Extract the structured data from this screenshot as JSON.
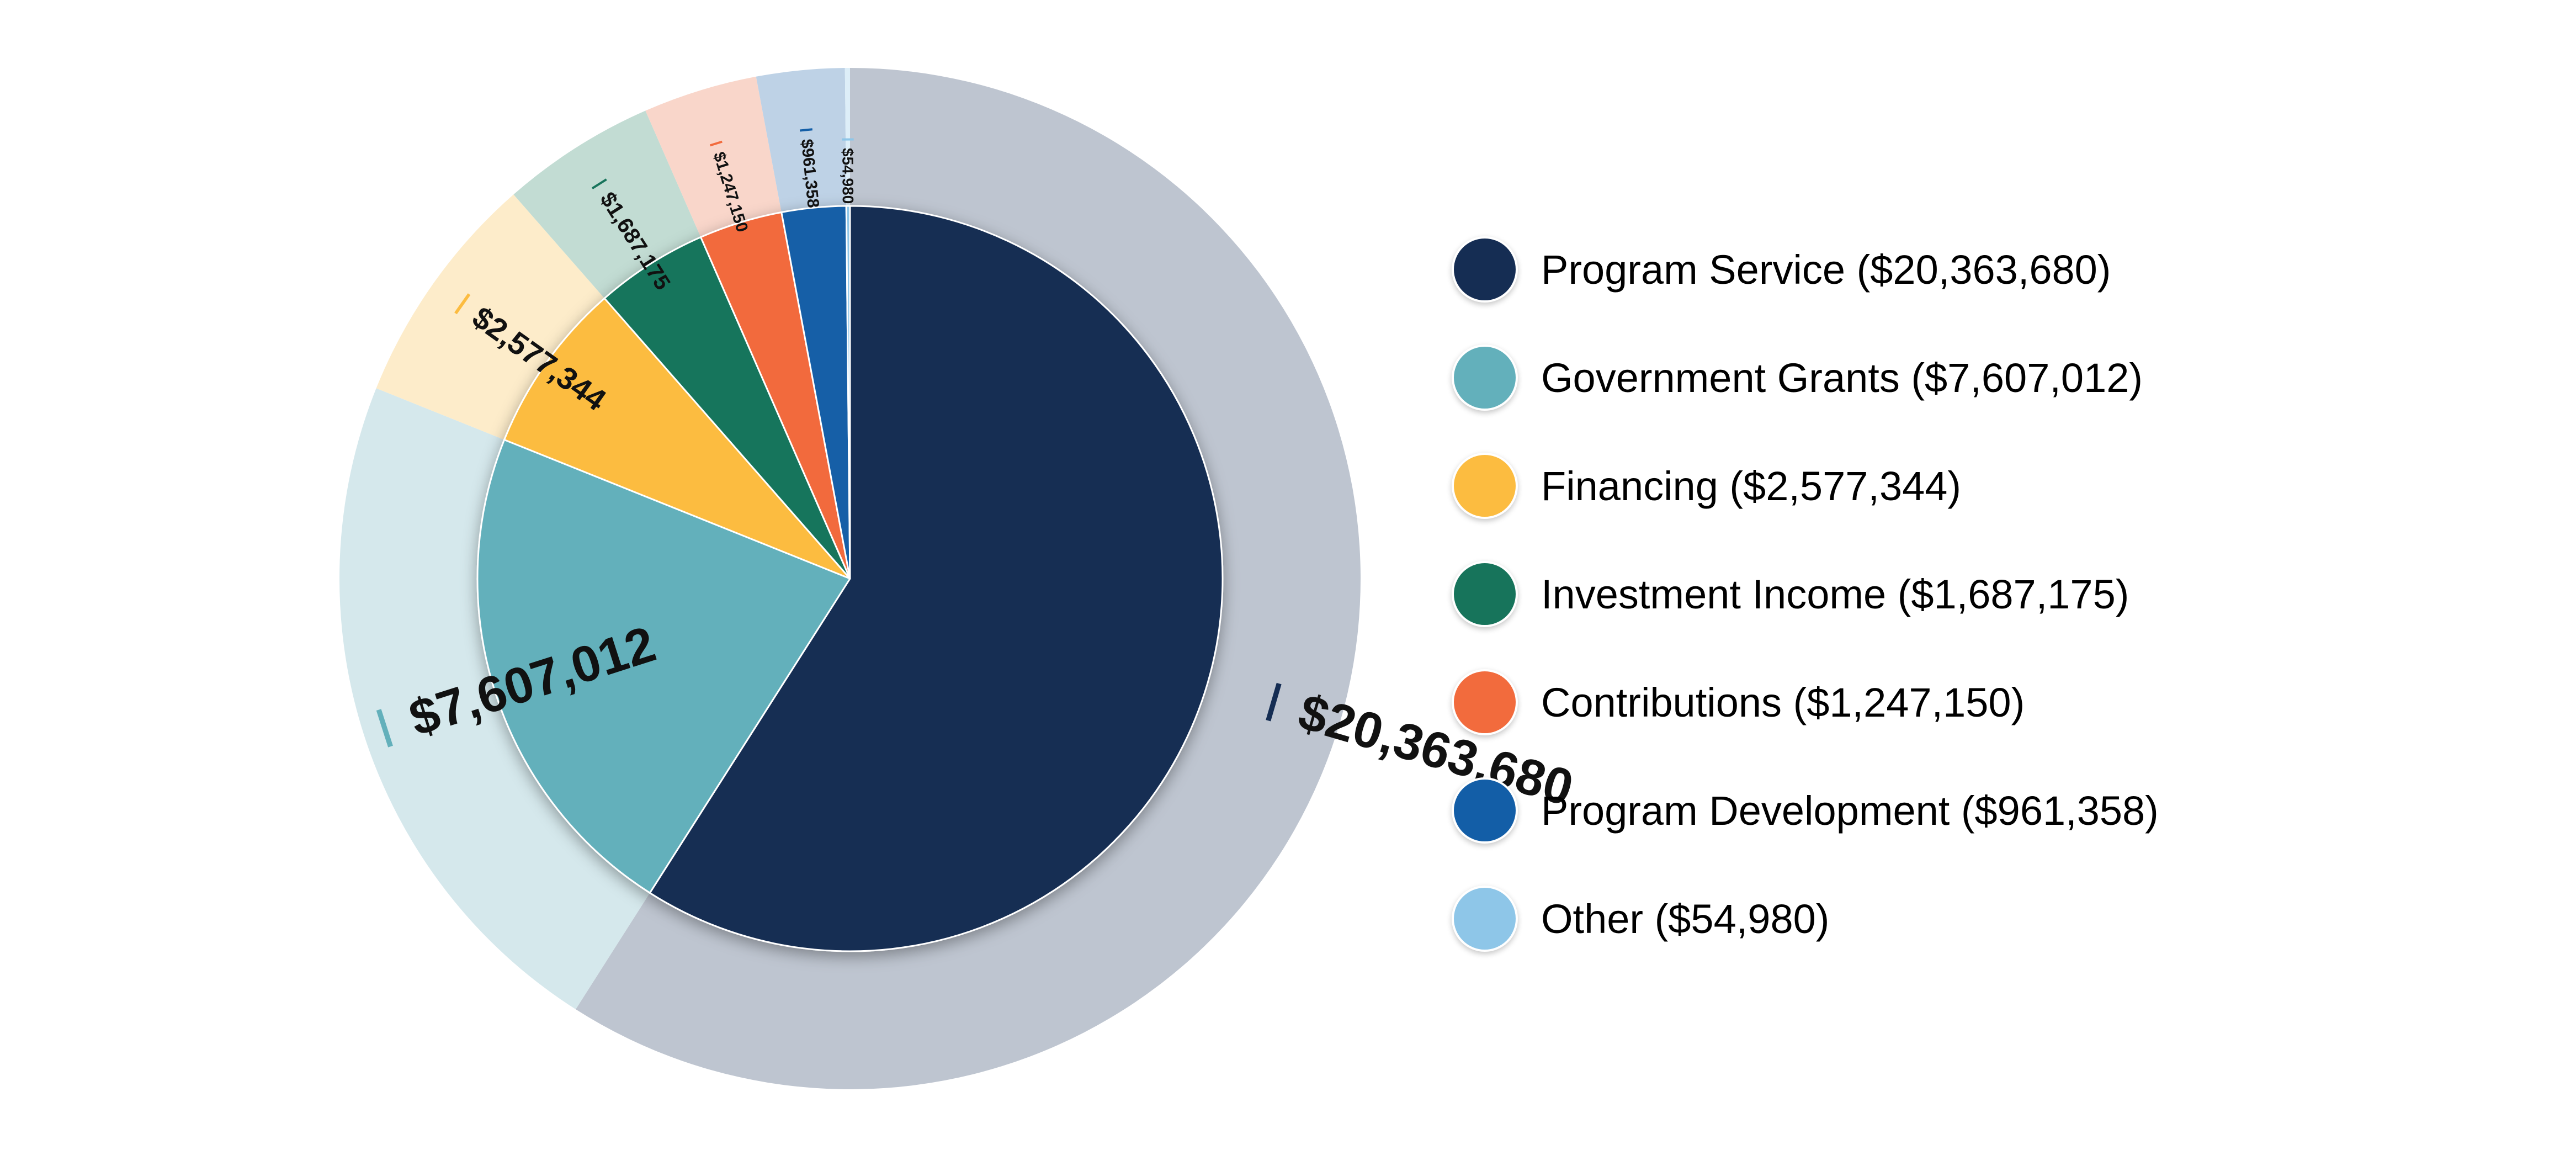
{
  "chart_data": {
    "type": "pie",
    "variant": "pie-with-outer-ring",
    "legend_position": "right",
    "slices": [
      {
        "name": "Program Service",
        "value": 20363680,
        "value_label": "$20,363,680",
        "legend": "Program Service ($20,363,680)",
        "color": "#152d53",
        "ring_color": "#bec5d0"
      },
      {
        "name": "Government Grants",
        "value": 7607012,
        "value_label": "$7,607,012",
        "legend": "Government Grants ($7,607,012)",
        "color": "#63b0bb",
        "ring_color": "#d5e8ec"
      },
      {
        "name": "Financing",
        "value": 2577344,
        "value_label": "$2,577,344",
        "legend": "Financing ($2,577,344)",
        "color": "#fcbc40",
        "ring_color": "#fdecca"
      },
      {
        "name": "Investment Income",
        "value": 1687175,
        "value_label": "$1,687,175",
        "legend": "Investment Income ($1,687,175)",
        "color": "#17745b",
        "ring_color": "#c2dcd3"
      },
      {
        "name": "Contributions",
        "value": 1247150,
        "value_label": "$1,247,150",
        "legend": "Contributions ($1,247,150)",
        "color": "#f26b3d",
        "ring_color": "#f9d6ca"
      },
      {
        "name": "Program Development",
        "value": 961358,
        "value_label": "$961,358",
        "legend": "Program Development ($961,358)",
        "color": "#135ea7",
        "ring_color": "#bed2e6"
      },
      {
        "name": "Other",
        "value": 54980,
        "value_label": "$54,980",
        "legend": "Other ($54,980)",
        "color": "#8ec6e8",
        "ring_color": "#ddeef8"
      }
    ]
  }
}
